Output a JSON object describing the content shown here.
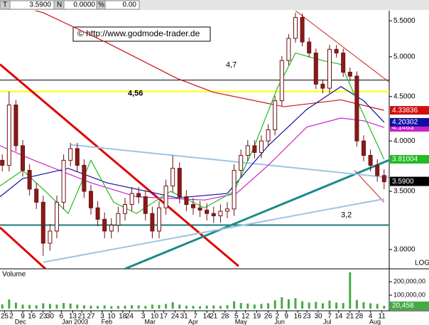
{
  "header": {
    "t_label": "T",
    "n_label": "N",
    "change": "0.0000",
    "pct_label": "%",
    "pct": "0.00"
  },
  "watermark": "© http://www.godmode-trader.de",
  "chart_data": {
    "type": "candlestick",
    "log_scale": true,
    "grid": false,
    "up_color": "#ffffff",
    "down_color": "#8b1a1a",
    "edge_color": "#6b1010",
    "last_close_label": "3.5900",
    "scale_label": "LOG",
    "x": [
      1,
      4,
      7,
      10,
      13,
      16,
      19,
      22,
      25,
      28,
      31,
      34,
      37,
      40,
      43,
      46,
      49,
      52,
      55,
      58,
      61,
      64,
      67,
      70,
      73,
      76,
      79,
      82,
      85,
      88,
      91,
      94,
      97,
      100,
      103,
      106,
      109,
      112,
      115,
      118,
      121,
      124,
      127,
      130,
      133,
      136,
      139,
      142,
      145,
      148,
      151,
      154,
      157,
      160,
      163,
      166,
      169
    ],
    "open": [
      3.8,
      3.75,
      4.4,
      3.95,
      3.7,
      3.52,
      3.4,
      3.05,
      3.15,
      3.4,
      3.8,
      3.92,
      3.75,
      3.5,
      3.35,
      3.25,
      3.15,
      3.2,
      3.3,
      3.38,
      3.48,
      3.45,
      3.3,
      3.15,
      3.35,
      3.55,
      3.72,
      3.45,
      3.38,
      3.35,
      3.33,
      3.3,
      3.28,
      3.32,
      3.34,
      3.7,
      3.85,
      3.95,
      3.88,
      4.0,
      4.12,
      4.45,
      4.95,
      5.25,
      5.55,
      5.2,
      5.05,
      4.65,
      4.6,
      5.1,
      5.05,
      4.8,
      4.75,
      4.0,
      3.85,
      3.75,
      3.65
    ],
    "high": [
      3.86,
      4.56,
      4.46,
      4.01,
      3.76,
      3.58,
      3.46,
      3.21,
      3.46,
      3.86,
      3.98,
      3.98,
      3.81,
      3.56,
      3.41,
      3.31,
      3.26,
      3.36,
      3.44,
      3.54,
      3.54,
      3.51,
      3.36,
      3.41,
      3.61,
      3.85,
      3.78,
      3.51,
      3.44,
      3.41,
      3.39,
      3.36,
      3.38,
      3.4,
      3.76,
      3.91,
      4.01,
      4.01,
      4.06,
      4.18,
      4.51,
      5.01,
      5.31,
      5.62,
      5.61,
      5.26,
      5.11,
      4.71,
      5.16,
      5.16,
      5.11,
      4.86,
      4.81,
      4.06,
      3.91,
      3.81,
      3.71
    ],
    "low": [
      3.69,
      3.69,
      3.89,
      3.64,
      3.46,
      3.34,
      2.95,
      2.99,
      3.09,
      3.34,
      3.74,
      3.69,
      3.44,
      3.29,
      3.19,
      3.09,
      3.09,
      3.14,
      3.24,
      3.32,
      3.39,
      3.24,
      3.09,
      3.09,
      3.29,
      3.49,
      3.39,
      3.32,
      3.29,
      3.27,
      3.24,
      3.22,
      3.22,
      3.26,
      3.28,
      3.64,
      3.79,
      3.82,
      3.82,
      3.94,
      4.06,
      4.39,
      4.89,
      5.19,
      5.14,
      4.99,
      4.59,
      4.54,
      4.54,
      4.99,
      4.74,
      4.69,
      3.94,
      3.79,
      3.69,
      3.59,
      3.52
    ],
    "close": [
      3.75,
      4.4,
      3.95,
      3.7,
      3.52,
      3.4,
      3.05,
      3.15,
      3.4,
      3.8,
      3.92,
      3.75,
      3.5,
      3.35,
      3.25,
      3.15,
      3.2,
      3.3,
      3.38,
      3.48,
      3.45,
      3.3,
      3.15,
      3.35,
      3.55,
      3.72,
      3.45,
      3.38,
      3.35,
      3.33,
      3.3,
      3.28,
      3.32,
      3.34,
      3.7,
      3.85,
      3.95,
      3.88,
      4.0,
      4.12,
      4.45,
      4.95,
      5.25,
      5.55,
      5.2,
      5.05,
      4.65,
      4.6,
      5.1,
      5.05,
      4.8,
      4.75,
      4.0,
      3.85,
      3.75,
      3.65,
      3.59
    ],
    "xlim": [
      0,
      171.25
    ],
    "ylim": [
      2.85,
      5.65
    ],
    "yticks": [
      {
        "value": 3,
        "label": "3.0000"
      },
      {
        "value": 3.5,
        "label": "3.5000"
      },
      {
        "value": 4,
        "label": "4.0000"
      },
      {
        "value": 4.5,
        "label": "4.5000"
      },
      {
        "value": 5,
        "label": "5.0000"
      },
      {
        "value": 5.5,
        "label": "5.5000"
      }
    ],
    "xticks": [
      {
        "value": 2,
        "label": "25"
      },
      {
        "value": 5,
        "label": "2"
      },
      {
        "value": 10,
        "label": "9"
      },
      {
        "value": 14,
        "label": "16"
      },
      {
        "value": 19,
        "label": "23"
      },
      {
        "value": 22,
        "label": "30"
      },
      {
        "value": 27,
        "label": "6"
      },
      {
        "value": 32,
        "label": "13"
      },
      {
        "value": 36,
        "label": "21"
      },
      {
        "value": 40,
        "label": "27"
      },
      {
        "value": 45,
        "label": "3"
      },
      {
        "value": 49,
        "label": "10"
      },
      {
        "value": 54,
        "label": "18"
      },
      {
        "value": 57,
        "label": "24"
      },
      {
        "value": 63,
        "label": "3"
      },
      {
        "value": 68,
        "label": "10"
      },
      {
        "value": 72,
        "label": "17"
      },
      {
        "value": 77,
        "label": "24"
      },
      {
        "value": 81,
        "label": "31"
      },
      {
        "value": 86,
        "label": "7"
      },
      {
        "value": 91,
        "label": "14"
      },
      {
        "value": 94,
        "label": "21"
      },
      {
        "value": 99,
        "label": "28"
      },
      {
        "value": 104,
        "label": "5"
      },
      {
        "value": 108,
        "label": "12"
      },
      {
        "value": 113,
        "label": "19"
      },
      {
        "value": 118,
        "label": "26"
      },
      {
        "value": 122,
        "label": "2"
      },
      {
        "value": 126,
        "label": "9"
      },
      {
        "value": 131,
        "label": "16"
      },
      {
        "value": 135,
        "label": "23"
      },
      {
        "value": 140,
        "label": "30"
      },
      {
        "value": 145,
        "label": "7"
      },
      {
        "value": 149,
        "label": "14"
      },
      {
        "value": 154,
        "label": "21"
      },
      {
        "value": 158,
        "label": "28"
      },
      {
        "value": 163,
        "label": "4"
      },
      {
        "value": 168,
        "label": "11"
      }
    ],
    "months": [
      {
        "value": 9,
        "label": "Dec"
      },
      {
        "value": 33,
        "label": "Jan 2003"
      },
      {
        "value": 47,
        "label": "Feb"
      },
      {
        "value": 66,
        "label": "Mar"
      },
      {
        "value": 85,
        "label": "Apr"
      },
      {
        "value": 106,
        "label": "May"
      },
      {
        "value": 123,
        "label": "Jun"
      },
      {
        "value": 144,
        "label": "Jul"
      },
      {
        "value": 165,
        "label": "Aug"
      }
    ],
    "hlines": [
      {
        "value": 4.7,
        "color": "#000000",
        "label": "4,7"
      },
      {
        "value": 4.56,
        "color": "#ffff00",
        "label": "4,56"
      },
      {
        "value": 3.2,
        "color": "#1a7a7a",
        "label": "3,2"
      }
    ],
    "trendlines": [
      {
        "color": "#e00000",
        "width": 3,
        "x": [
          0,
          105
        ],
        "values": [
          4.9,
          2.87
        ]
      },
      {
        "color": "#e00000",
        "width": 3,
        "x": [
          0,
          20
        ],
        "values": [
          3.18,
          2.85
        ]
      },
      {
        "color": "#d02020",
        "width": 1,
        "x": [
          130,
          171
        ],
        "values": [
          5.65,
          4.68
        ]
      },
      {
        "color": "#d02020",
        "width": 1,
        "x": [
          156,
          169
        ],
        "values": [
          3.7,
          3.4
        ]
      },
      {
        "color": "#1a8a8a",
        "width": 3,
        "x": [
          55,
          171
        ],
        "values": [
          2.85,
          3.8
        ]
      },
      {
        "color": "#9cc4e4",
        "width": 2,
        "x": [
          31,
          171
        ],
        "values": [
          3.96,
          3.63
        ]
      },
      {
        "color": "#9cc4e4",
        "width": 2,
        "x": [
          19,
          169
        ],
        "values": [
          2.9,
          3.43
        ]
      }
    ],
    "moving_averages": [
      {
        "color": "#d01010",
        "x": [
          10,
          19,
          47,
          78,
          94,
          125,
          150,
          169
        ],
        "values": [
          5.7,
          5.62,
          5.19,
          4.72,
          4.55,
          4.38,
          4.46,
          4.33836
        ]
      },
      {
        "color": "#cc22cc",
        "x": [
          0,
          15,
          40,
          60,
          90,
          104,
          118,
          135,
          150,
          160,
          169
        ],
        "values": [
          3.95,
          3.8,
          3.58,
          3.45,
          3.42,
          3.48,
          3.75,
          4.15,
          4.25,
          4.22,
          4.1463
        ]
      },
      {
        "color": "#1010a0",
        "x": [
          0,
          10,
          30,
          47,
          78,
          100,
          118,
          135,
          150,
          160,
          169
        ],
        "values": [
          3.45,
          3.62,
          3.72,
          3.58,
          3.44,
          3.48,
          3.95,
          4.35,
          4.62,
          4.45,
          4.20302
        ]
      },
      {
        "color": "#22bb22",
        "x": [
          0,
          10,
          20,
          30,
          40,
          50,
          60,
          75,
          90,
          103,
          112,
          122,
          130,
          142,
          150,
          158,
          169
        ],
        "values": [
          3.55,
          3.7,
          3.5,
          3.3,
          3.8,
          3.4,
          3.3,
          3.5,
          3.35,
          3.5,
          3.95,
          4.6,
          5.05,
          4.95,
          4.9,
          4.4,
          3.81004
        ]
      }
    ],
    "volume": {
      "title": "Volume",
      "color": "#44aa44",
      "ylim": [
        0,
        280000
      ],
      "yticks": [
        {
          "value": 100000,
          "label": "100,000,00"
        },
        {
          "value": 200000,
          "label": "200,000,00"
        }
      ],
      "last_label": "20,458",
      "values": [
        32000,
        68000,
        45000,
        30000,
        28000,
        25000,
        40000,
        35000,
        30000,
        42000,
        38000,
        30000,
        25000,
        22000,
        20000,
        24000,
        18000,
        20000,
        22000,
        26000,
        24000,
        20000,
        30000,
        28000,
        35000,
        48000,
        30000,
        22000,
        20000,
        18000,
        22000,
        24000,
        20000,
        26000,
        55000,
        42000,
        38000,
        30000,
        35000,
        40000,
        62000,
        85000,
        70000,
        78000,
        55000,
        45000,
        50000,
        40000,
        60000,
        45000,
        42000,
        270000,
        65000,
        48000,
        40000,
        35000,
        20458
      ]
    }
  }
}
